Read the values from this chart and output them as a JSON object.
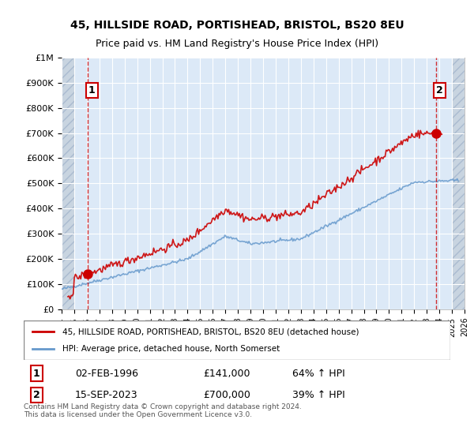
{
  "title1": "45, HILLSIDE ROAD, PORTISHEAD, BRISTOL, BS20 8EU",
  "title2": "Price paid vs. HM Land Registry's House Price Index (HPI)",
  "bg_color": "#dce9f7",
  "plot_area_color": "#dce9f7",
  "red_line_color": "#cc0000",
  "blue_line_color": "#6699cc",
  "dashed_vline_color": "#cc0000",
  "point1_date": 1996.09,
  "point1_value": 141000,
  "point1_label": "1",
  "point2_date": 2023.71,
  "point2_value": 700000,
  "point2_label": "2",
  "xmin": 1994,
  "xmax": 2026,
  "ymin": 0,
  "ymax": 1000000,
  "yticks": [
    0,
    100000,
    200000,
    300000,
    400000,
    500000,
    600000,
    700000,
    800000,
    900000,
    1000000
  ],
  "ytick_labels": [
    "£0",
    "£100K",
    "£200K",
    "£300K",
    "£400K",
    "£500K",
    "£600K",
    "£700K",
    "£800K",
    "£900K",
    "£1M"
  ],
  "legend_line1": "45, HILLSIDE ROAD, PORTISHEAD, BRISTOL, BS20 8EU (detached house)",
  "legend_line2": "HPI: Average price, detached house, North Somerset",
  "footnote": "Contains HM Land Registry data © Crown copyright and database right 2024.\nThis data is licensed under the Open Government Licence v3.0.",
  "table_row1": [
    "1",
    "02-FEB-1996",
    "£141,000",
    "64% ↑ HPI"
  ],
  "table_row2": [
    "2",
    "15-SEP-2023",
    "£700,000",
    "39% ↑ HPI"
  ],
  "hatch_facecolor": "#c8d4e0",
  "hatch_edgecolor": "#aabbd0",
  "grid_color": "#ffffff"
}
